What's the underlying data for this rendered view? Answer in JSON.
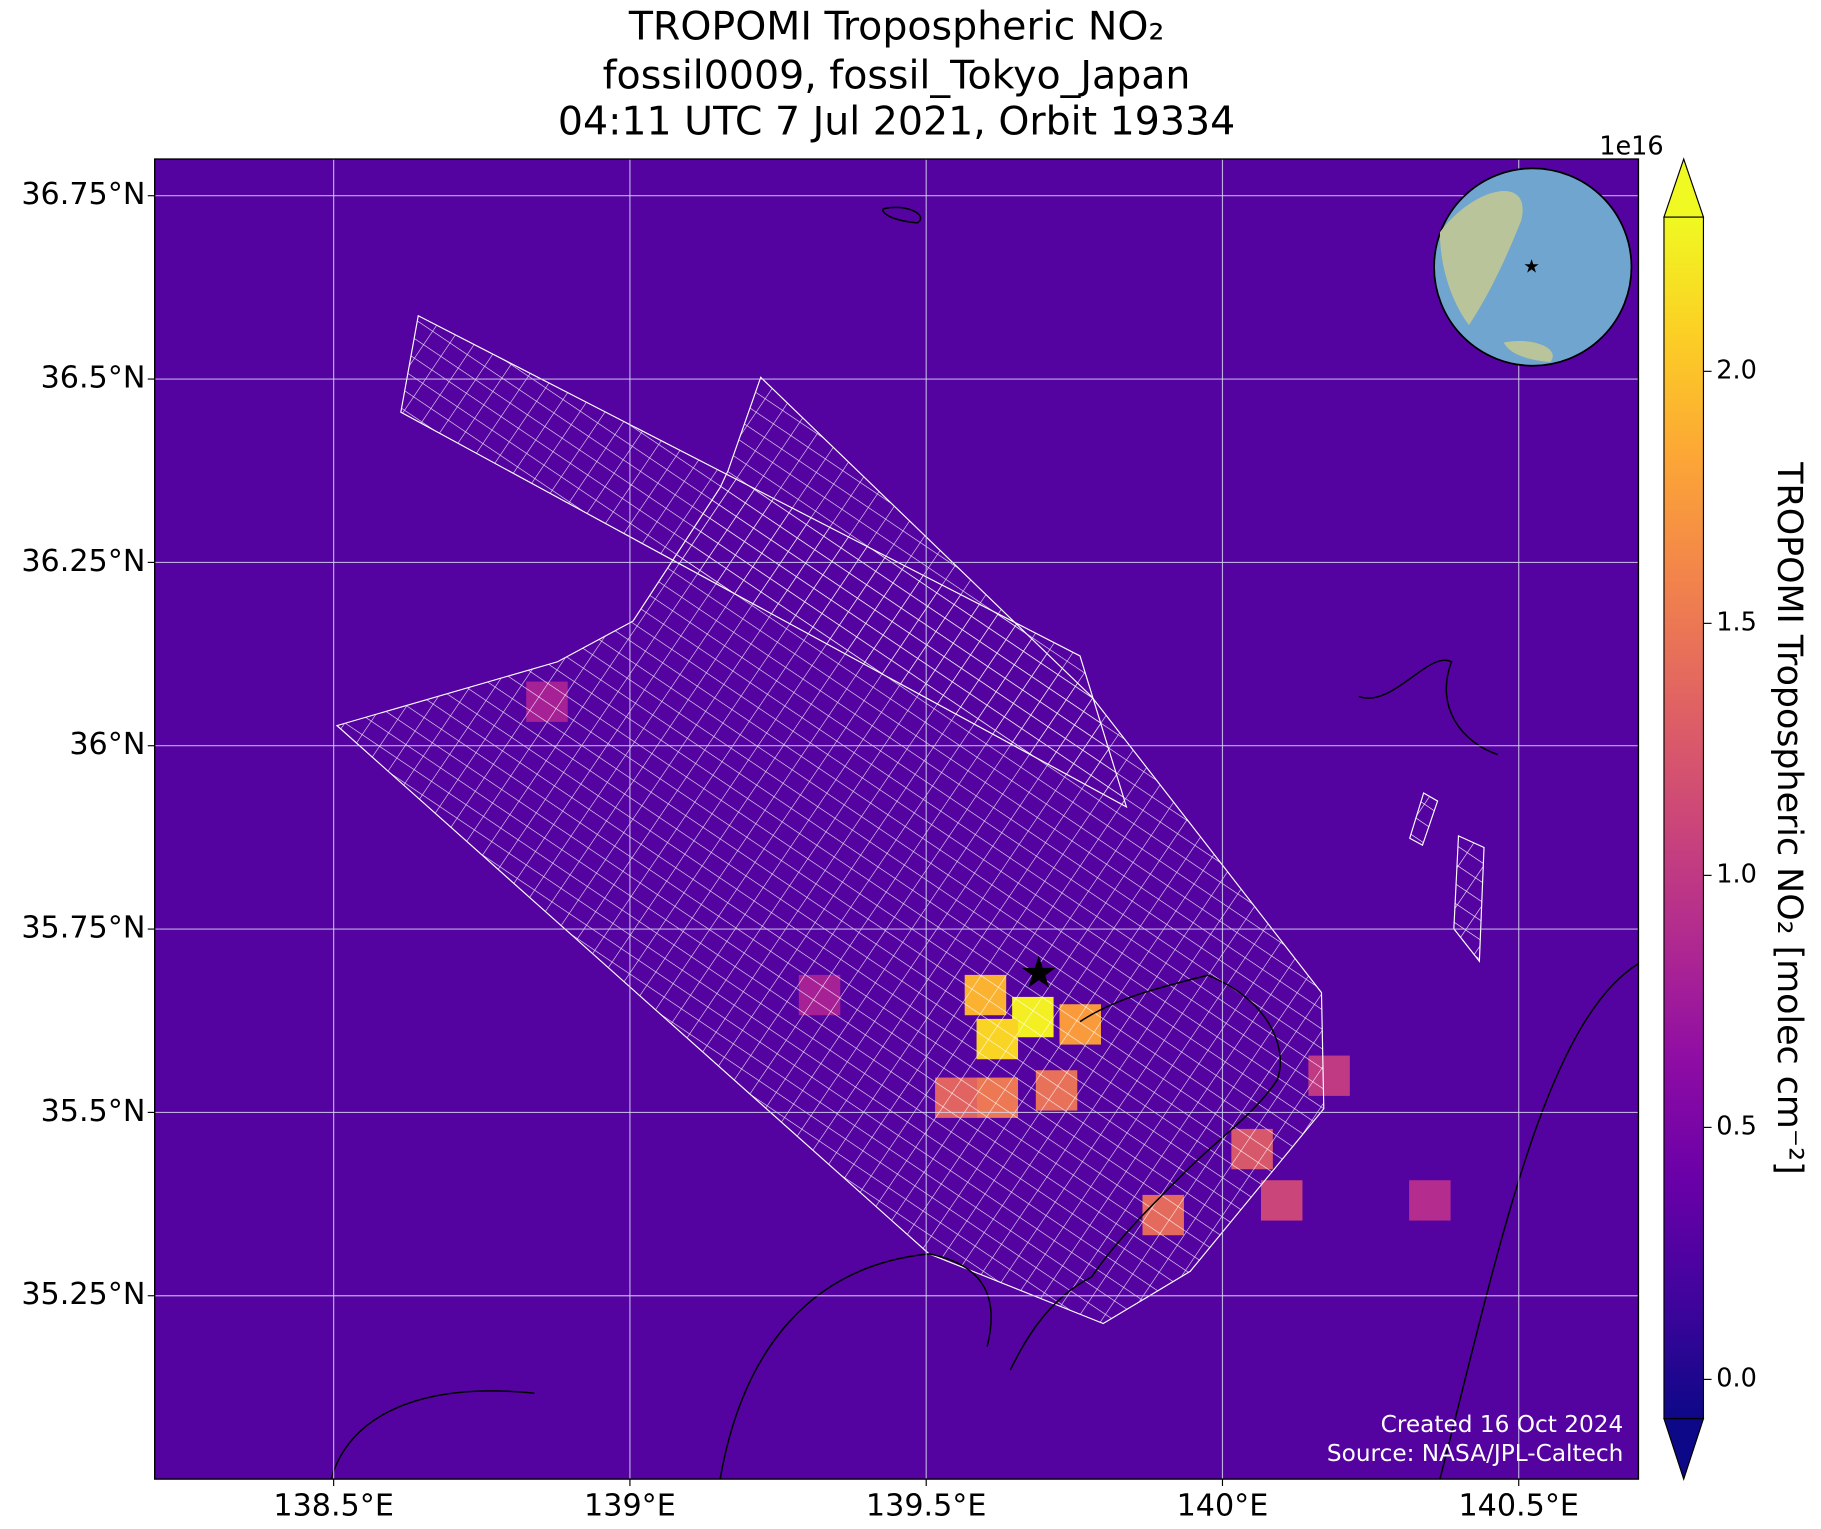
{
  "chart_data": {
    "type": "map",
    "title_lines": [
      "TROPOMI Tropospheric NO₂",
      "fossil0009, fossil_Tokyo_Japan",
      "04:11 UTC 7 Jul 2021, Orbit 19334"
    ],
    "xlim": [
      138.198,
      140.702
    ],
    "ylim": [
      35.0,
      36.8
    ],
    "xticks": [
      {
        "value": 138.5,
        "label": "138.5°E"
      },
      {
        "value": 139,
        "label": "139°E"
      },
      {
        "value": 139.5,
        "label": "139.5°E"
      },
      {
        "value": 140,
        "label": "140°E"
      },
      {
        "value": 140.5,
        "label": "140.5°E"
      }
    ],
    "yticks": [
      {
        "value": 35.25,
        "label": "35.25°N"
      },
      {
        "value": 35.5,
        "label": "35.5°N"
      },
      {
        "value": 35.75,
        "label": "35.75°N"
      },
      {
        "value": 36,
        "label": "36°N"
      },
      {
        "value": 36.25,
        "label": "36.25°N"
      },
      {
        "value": 36.5,
        "label": "36.5°N"
      },
      {
        "value": 36.75,
        "label": "36.75°N"
      }
    ],
    "grid": true,
    "colormap": "plasma",
    "colorbar": {
      "label": "TROPOMI Tropospheric NO₂ [molec cm⁻²]",
      "exponent": "1e16",
      "clim": [
        -0.078,
        2.306
      ],
      "ticks": [
        {
          "value": 0,
          "label": "0.0"
        },
        0.5,
        {
          "value": 1,
          "label": "1.0"
        },
        1.5,
        {
          "value": 2,
          "label": "2.0"
        }
      ]
    },
    "cells": [
      {
        "lon": 139.68,
        "lat": 35.63,
        "value": 2.25
      },
      {
        "lon": 139.62,
        "lat": 35.6,
        "value": 2.1
      },
      {
        "lon": 139.6,
        "lat": 35.66,
        "value": 1.9
      },
      {
        "lon": 139.76,
        "lat": 35.62,
        "value": 1.75
      },
      {
        "lon": 139.62,
        "lat": 35.52,
        "value": 1.5
      },
      {
        "lon": 139.72,
        "lat": 35.53,
        "value": 1.45
      },
      {
        "lon": 139.55,
        "lat": 35.52,
        "value": 1.35
      },
      {
        "lon": 139.9,
        "lat": 35.36,
        "value": 1.4
      },
      {
        "lon": 140.05,
        "lat": 35.45,
        "value": 1.25
      },
      {
        "lon": 140.1,
        "lat": 35.38,
        "value": 1.1
      },
      {
        "lon": 140.18,
        "lat": 35.55,
        "value": 1.0
      },
      {
        "lon": 140.35,
        "lat": 35.38,
        "value": 0.9
      },
      {
        "lon": 139.32,
        "lat": 35.66,
        "value": 0.8
      },
      {
        "lon": 138.86,
        "lat": 36.06,
        "value": 0.8
      }
    ],
    "site": {
      "lon": 139.69,
      "lat": 35.69
    },
    "footer": [
      "Created 16 Oct 2024",
      "Source: NASA/JPL-Caltech"
    ]
  }
}
